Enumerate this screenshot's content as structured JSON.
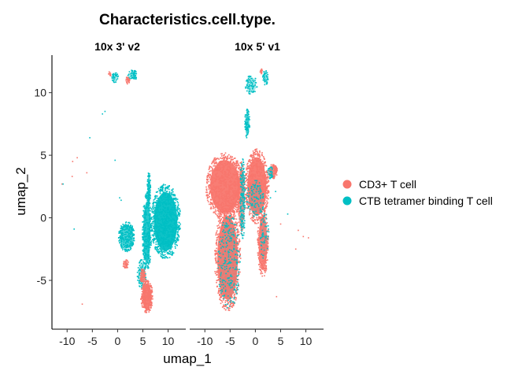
{
  "chart_data": {
    "type": "scatter",
    "title": "Characteristics.cell.type.",
    "xlabel": "umap_1",
    "ylabel": "umap_2",
    "xlim": [
      -13,
      13.5
    ],
    "ylim": [
      -8.9,
      13
    ],
    "xticks": [
      -10,
      -5,
      0,
      5,
      10
    ],
    "yticks": [
      -5,
      0,
      5,
      10
    ],
    "grid": false,
    "legend_position": "right",
    "series": [
      {
        "name": "CD3+ T cell",
        "color": "#F8766D"
      },
      {
        "name": "CTB tetramer binding T cell",
        "color": "#00BFC4"
      }
    ],
    "panels": [
      {
        "label": "10x 3' v2",
        "clusters": [
          {
            "series": 1,
            "type": "blob",
            "cx": 9.5,
            "cy": -0.3,
            "rx": 3.0,
            "ry": 3.0,
            "density": 0.95,
            "n": 900
          },
          {
            "series": 1,
            "type": "blob",
            "cx": 1.8,
            "cy": -1.5,
            "rx": 1.6,
            "ry": 1.2,
            "density": 0.7,
            "n": 260
          },
          {
            "series": 1,
            "type": "blob",
            "cx": 5.8,
            "cy": -1.2,
            "rx": 0.9,
            "ry": 3.2,
            "density": 0.85,
            "n": 300
          },
          {
            "series": 1,
            "type": "blob",
            "cx": 6.2,
            "cy": 2.2,
            "rx": 0.35,
            "ry": 1.5,
            "density": 0.8,
            "n": 70
          },
          {
            "series": 1,
            "type": "blob",
            "cx": 3.0,
            "cy": 11.4,
            "rx": 1.0,
            "ry": 0.4,
            "density": 0.5,
            "n": 50
          },
          {
            "series": 1,
            "type": "blob",
            "cx": -0.5,
            "cy": 11.2,
            "rx": 0.7,
            "ry": 0.4,
            "density": 0.5,
            "n": 35
          },
          {
            "series": 1,
            "type": "blob",
            "cx": 4.8,
            "cy": -4.5,
            "rx": 0.9,
            "ry": 1.2,
            "density": 0.6,
            "n": 80
          },
          {
            "series": 0,
            "type": "blob",
            "cx": 5.8,
            "cy": -6.3,
            "rx": 1.2,
            "ry": 1.3,
            "density": 0.95,
            "n": 260
          },
          {
            "series": 0,
            "type": "blob",
            "cx": 5.0,
            "cy": -4.6,
            "rx": 0.6,
            "ry": 0.6,
            "density": 0.8,
            "n": 60
          },
          {
            "series": 0,
            "type": "blob",
            "cx": 1.6,
            "cy": -3.7,
            "rx": 0.6,
            "ry": 0.35,
            "density": 0.7,
            "n": 30
          },
          {
            "series": 0,
            "type": "blob",
            "cx": 2.0,
            "cy": 11.0,
            "rx": 0.6,
            "ry": 0.3,
            "density": 0.7,
            "n": 20
          },
          {
            "series": 0,
            "type": "blob",
            "cx": -1.5,
            "cy": 11.5,
            "rx": 0.3,
            "ry": 0.2,
            "density": 0.7,
            "n": 6
          }
        ],
        "points": [
          {
            "series": 0,
            "x": -6.1,
            "y": 3.6
          },
          {
            "series": 0,
            "x": -8.9,
            "y": 4.5
          },
          {
            "series": 0,
            "x": -8.0,
            "y": 4.8
          },
          {
            "series": 0,
            "x": -9.0,
            "y": 3.3
          },
          {
            "series": 0,
            "x": -11.0,
            "y": 2.7
          },
          {
            "series": 0,
            "x": -7.0,
            "y": -6.9
          },
          {
            "series": 1,
            "x": -8.6,
            "y": -0.9
          },
          {
            "series": 1,
            "x": -5.5,
            "y": 6.4
          },
          {
            "series": 1,
            "x": -3.0,
            "y": 8.3
          },
          {
            "series": 1,
            "x": -2.5,
            "y": 8.5
          },
          {
            "series": 1,
            "x": -0.5,
            "y": 4.6
          },
          {
            "series": 1,
            "x": 0.4,
            "y": 1.6
          },
          {
            "series": 1,
            "x": 0.7,
            "y": 1.4
          },
          {
            "series": 1,
            "x": -10.8,
            "y": 2.7
          }
        ]
      },
      {
        "label": "10x 5' v1",
        "clusters": [
          {
            "series": 0,
            "type": "blob",
            "cx": -6.0,
            "cy": 2.5,
            "rx": 3.8,
            "ry": 2.7,
            "density": 0.95,
            "n": 900
          },
          {
            "series": 0,
            "type": "blob",
            "cx": -5.5,
            "cy": -3.2,
            "rx": 2.6,
            "ry": 4.3,
            "density": 0.95,
            "n": 900
          },
          {
            "series": 0,
            "type": "blob",
            "cx": 0.3,
            "cy": 2.5,
            "rx": 2.4,
            "ry": 3.0,
            "density": 0.95,
            "n": 650
          },
          {
            "series": 0,
            "type": "blob",
            "cx": 1.5,
            "cy": -2.0,
            "rx": 1.1,
            "ry": 2.8,
            "density": 0.9,
            "n": 260
          },
          {
            "series": 0,
            "type": "blob",
            "cx": 3.5,
            "cy": 3.7,
            "rx": 0.9,
            "ry": 0.6,
            "density": 0.85,
            "n": 70
          },
          {
            "series": 0,
            "type": "blob",
            "cx": -2.8,
            "cy": 1.5,
            "rx": 0.8,
            "ry": 3.0,
            "density": 0.7,
            "n": 150
          },
          {
            "series": 0,
            "type": "blob",
            "cx": 1.2,
            "cy": 11.7,
            "rx": 0.3,
            "ry": 0.2,
            "density": 0.7,
            "n": 10
          },
          {
            "series": 1,
            "type": "blob",
            "cx": -2.5,
            "cy": 1.5,
            "rx": 0.55,
            "ry": 3.2,
            "density": 0.35,
            "n": 160
          },
          {
            "series": 1,
            "type": "blob",
            "cx": -5.2,
            "cy": -3.5,
            "rx": 2.2,
            "ry": 3.8,
            "density": 0.12,
            "n": 240
          },
          {
            "series": 1,
            "type": "blob",
            "cx": -1.6,
            "cy": 7.5,
            "rx": 0.5,
            "ry": 1.2,
            "density": 0.75,
            "n": 60
          },
          {
            "series": 1,
            "type": "blob",
            "cx": -0.8,
            "cy": 10.6,
            "rx": 1.2,
            "ry": 0.8,
            "density": 0.6,
            "n": 70
          },
          {
            "series": 1,
            "type": "blob",
            "cx": 2.0,
            "cy": 11.2,
            "rx": 0.6,
            "ry": 0.6,
            "density": 0.6,
            "n": 40
          },
          {
            "series": 1,
            "type": "blob",
            "cx": 0.0,
            "cy": 1.5,
            "rx": 1.8,
            "ry": 1.5,
            "density": 0.18,
            "n": 110
          },
          {
            "series": 1,
            "type": "blob",
            "cx": 3.0,
            "cy": 3.6,
            "rx": 0.6,
            "ry": 0.5,
            "density": 0.4,
            "n": 30
          },
          {
            "series": 1,
            "type": "blob",
            "cx": 1.8,
            "cy": -1.5,
            "rx": 0.9,
            "ry": 2.0,
            "density": 0.12,
            "n": 50
          }
        ],
        "points": [
          {
            "series": 0,
            "x": 8.5,
            "y": -1.0
          },
          {
            "series": 0,
            "x": 8.0,
            "y": -2.5
          },
          {
            "series": 0,
            "x": 9.5,
            "y": -1.5
          },
          {
            "series": 0,
            "x": 10.5,
            "y": -1.6
          },
          {
            "series": 0,
            "x": 4.2,
            "y": -6.3
          },
          {
            "series": 0,
            "x": 5.0,
            "y": -0.5
          },
          {
            "series": 1,
            "x": 3.0,
            "y": 1.6
          },
          {
            "series": 1,
            "x": 4.0,
            "y": 2.1
          },
          {
            "series": 1,
            "x": 6.4,
            "y": 0.3
          },
          {
            "series": 1,
            "x": 3.2,
            "y": 3.5
          }
        ]
      }
    ]
  }
}
